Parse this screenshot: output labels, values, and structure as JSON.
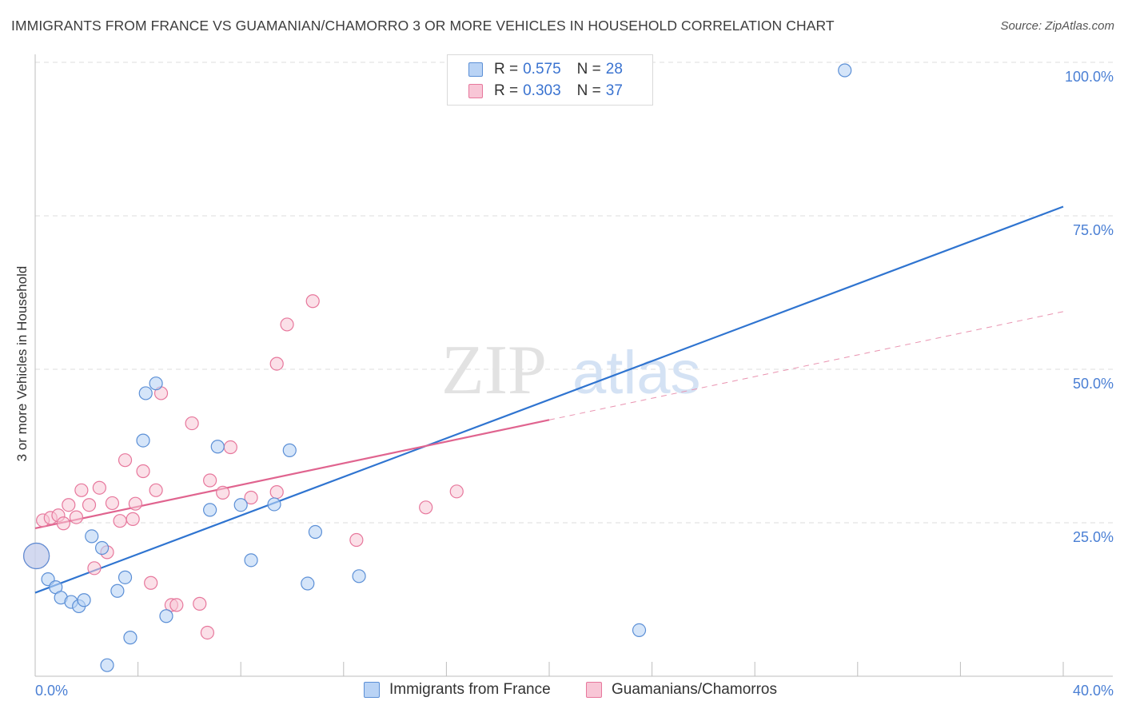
{
  "chart_data": {
    "type": "scatter",
    "title": "IMMIGRANTS FROM FRANCE VS GUAMANIAN/CHAMORRO 3 OR MORE VEHICLES IN HOUSEHOLD CORRELATION CHART",
    "source": "Source: ZipAtlas.com",
    "xlabel": "",
    "ylabel": "3 or more Vehicles in Household",
    "xlim": [
      0,
      40
    ],
    "ylim": [
      0,
      100
    ],
    "x_tick_labels": [
      "0.0%",
      "40.0%"
    ],
    "y_ticks": [
      25,
      50,
      75,
      100
    ],
    "y_tick_labels": [
      "25.0%",
      "50.0%",
      "75.0%",
      "100.0%"
    ],
    "watermark": "ZIPatlas",
    "series": [
      {
        "name": "Immigrants from France",
        "color": "#5b8fd6",
        "fill": "#b9d3f5",
        "R": "0.575",
        "N": "28",
        "trend": {
          "x0": 0,
          "y0": 13.6,
          "x1": 40,
          "y1": 76.5,
          "solid_to": 40
        },
        "points": [
          [
            0.05,
            19.6
          ],
          [
            0.5,
            15.8
          ],
          [
            0.8,
            14.5
          ],
          [
            1.0,
            12.8
          ],
          [
            1.4,
            12.1
          ],
          [
            1.7,
            11.4
          ],
          [
            1.9,
            12.4
          ],
          [
            2.2,
            22.8
          ],
          [
            2.6,
            20.9
          ],
          [
            2.8,
            1.8
          ],
          [
            3.2,
            13.9
          ],
          [
            3.5,
            16.1
          ],
          [
            3.7,
            6.3
          ],
          [
            4.2,
            38.4
          ],
          [
            4.3,
            46.1
          ],
          [
            4.7,
            47.7
          ],
          [
            5.1,
            9.8
          ],
          [
            6.8,
            27.1
          ],
          [
            7.1,
            37.4
          ],
          [
            8.0,
            27.9
          ],
          [
            8.4,
            18.9
          ],
          [
            9.3,
            28.0
          ],
          [
            9.9,
            36.8
          ],
          [
            10.6,
            15.1
          ],
          [
            10.9,
            23.5
          ],
          [
            12.6,
            16.3
          ],
          [
            23.5,
            7.5
          ],
          [
            31.5,
            98.7
          ]
        ]
      },
      {
        "name": "Guamanians/Chamorros",
        "color": "#e7779c",
        "fill": "#f8c6d6",
        "R": "0.303",
        "N": "37",
        "trend": {
          "x0": 0,
          "y0": 24.1,
          "x1": 40,
          "y1": 59.4,
          "solid_to": 20
        }
      }
    ],
    "points_pink": [
      [
        0.05,
        19.6
      ],
      [
        0.3,
        25.4
      ],
      [
        0.6,
        25.8
      ],
      [
        0.9,
        26.2
      ],
      [
        1.1,
        24.9
      ],
      [
        1.3,
        27.9
      ],
      [
        1.6,
        25.9
      ],
      [
        1.8,
        30.3
      ],
      [
        2.1,
        27.9
      ],
      [
        2.3,
        17.6
      ],
      [
        2.5,
        30.7
      ],
      [
        2.8,
        20.2
      ],
      [
        3.0,
        28.2
      ],
      [
        3.3,
        25.3
      ],
      [
        3.5,
        35.2
      ],
      [
        3.8,
        25.6
      ],
      [
        3.9,
        28.1
      ],
      [
        4.2,
        33.4
      ],
      [
        4.5,
        15.2
      ],
      [
        4.7,
        30.3
      ],
      [
        4.9,
        46.1
      ],
      [
        5.3,
        11.6
      ],
      [
        5.5,
        11.6
      ],
      [
        6.1,
        41.2
      ],
      [
        6.4,
        11.8
      ],
      [
        6.7,
        7.1
      ],
      [
        6.8,
        31.9
      ],
      [
        7.3,
        29.9
      ],
      [
        7.6,
        37.3
      ],
      [
        8.4,
        29.1
      ],
      [
        9.4,
        30.0
      ],
      [
        9.4,
        50.9
      ],
      [
        9.8,
        57.3
      ],
      [
        10.8,
        61.1
      ],
      [
        12.5,
        22.2
      ],
      [
        15.2,
        27.5
      ],
      [
        16.4,
        30.1
      ]
    ]
  },
  "legend": {
    "r_label": "R =",
    "n_label": "N =",
    "entries": [
      {
        "r": "0.575",
        "n": "28"
      },
      {
        "r": "0.303",
        "n": "37"
      }
    ]
  },
  "bottom_legend": [
    "Immigrants from France",
    "Guamanians/Chamorros"
  ]
}
